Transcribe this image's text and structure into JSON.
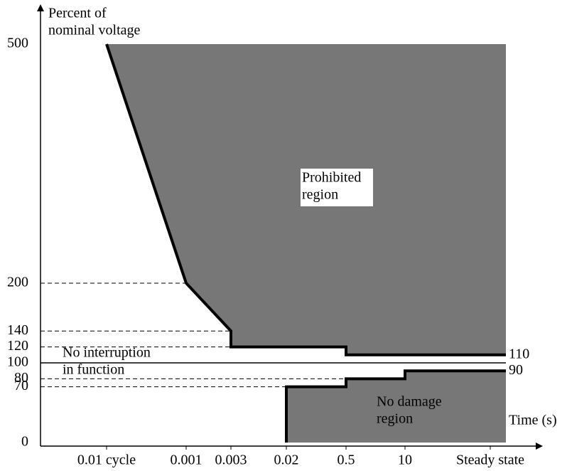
{
  "chart_data": {
    "type": "line",
    "y_label": [
      "Percent of",
      "nominal voltage"
    ],
    "x_label": "Time (s)",
    "categories": [
      "0.01 cycle",
      "0.001",
      "0.003",
      "0.02",
      "0.5",
      "10",
      "Steady state"
    ],
    "ylim": [
      0,
      500
    ],
    "yticks": [
      0,
      70,
      80,
      100,
      120,
      140,
      200,
      500
    ],
    "series": [
      {
        "x": [
          "0.01 cycle",
          "0.001",
          "0.003",
          "0.003",
          "0.5",
          "0.5",
          "Steady state"
        ],
        "values": [
          500,
          200,
          140,
          120,
          120,
          110,
          110
        ],
        "color": "#000000",
        "fill": "#777777",
        "fill_to": "top"
      },
      {
        "x": [
          "0.02",
          "0.02",
          "0.5",
          "0.5",
          "10",
          "10",
          "Steady state"
        ],
        "values": [
          0,
          70,
          70,
          80,
          80,
          90,
          90
        ],
        "color": "#000000",
        "fill": "#777777",
        "fill_to": "bottom"
      }
    ],
    "annotations": [
      {
        "lines": [
          "Prohibited",
          "region"
        ]
      },
      {
        "lines": [
          "No interruption",
          "in function"
        ]
      },
      {
        "lines": [
          "No damage",
          "region"
        ]
      }
    ]
  }
}
